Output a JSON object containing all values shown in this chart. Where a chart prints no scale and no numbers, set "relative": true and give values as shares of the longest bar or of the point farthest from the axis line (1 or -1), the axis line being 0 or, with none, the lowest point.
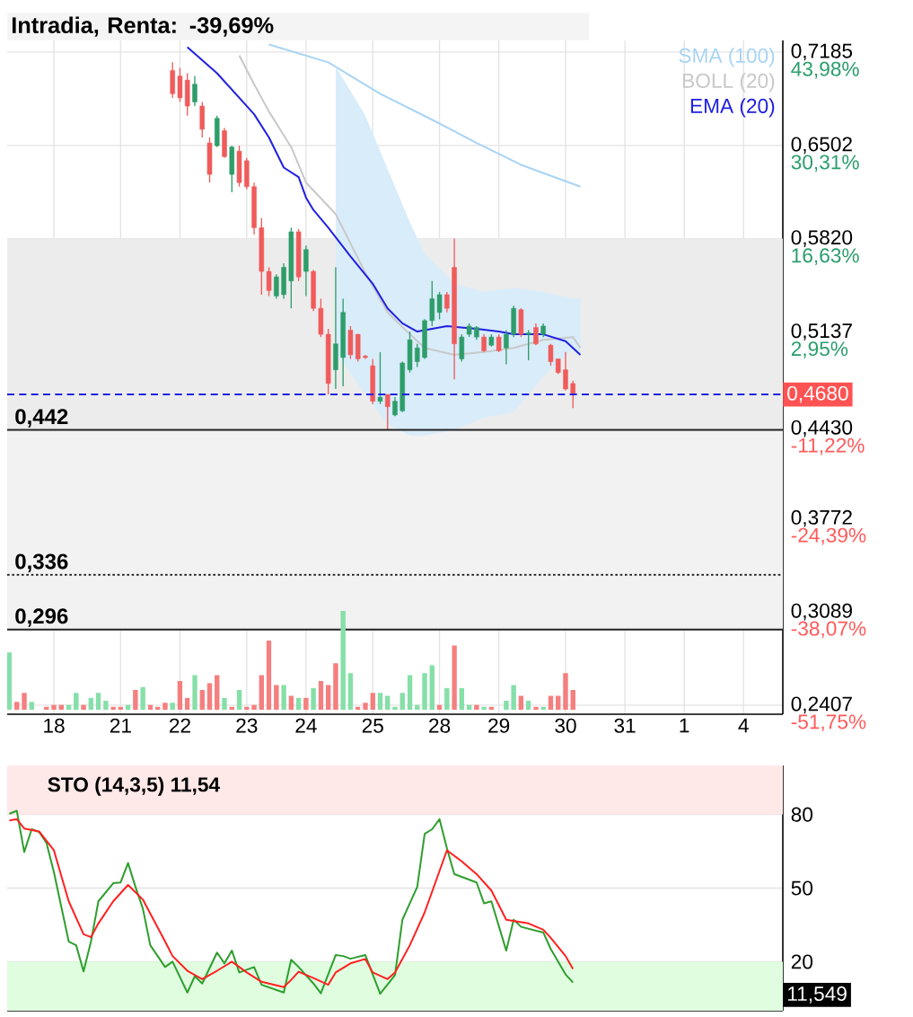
{
  "chart_data": [
    {
      "type": "candlestick",
      "title": "Intradia, Renta: -39,69%",
      "categories": [
        null,
        null,
        null,
        null,
        null,
        null,
        "18",
        null,
        null,
        null,
        null,
        null,
        null,
        null,
        null,
        "21",
        null,
        null,
        null,
        null,
        null,
        null,
        null,
        "22",
        null,
        null,
        null,
        null,
        null,
        null,
        null,
        null,
        "23",
        null,
        null,
        null,
        null,
        null,
        null,
        null,
        "24",
        null,
        null,
        null,
        null,
        null,
        null,
        null,
        null,
        "25",
        null,
        null,
        null,
        null,
        null,
        null,
        null,
        null,
        "28",
        null,
        null,
        null,
        null,
        null,
        null,
        null,
        "29",
        null,
        null,
        null,
        null,
        null,
        null,
        null,
        null,
        "30",
        null,
        null,
        null,
        null,
        null,
        null,
        null,
        "31",
        null,
        null,
        null,
        null,
        null,
        null,
        null,
        "1",
        null,
        null,
        null,
        null,
        null,
        null,
        null,
        "4",
        null,
        null,
        null,
        null,
        null
      ],
      "series": [
        {
          "name": "SMA (100)",
          "type": "line",
          "color": "#a8d4f5",
          "values": [
            null,
            null,
            null,
            null,
            null,
            null,
            null,
            null,
            null,
            null,
            null,
            null,
            null,
            null,
            null,
            null,
            null,
            null,
            null,
            null,
            null,
            null,
            null,
            null,
            null,
            null,
            null,
            null,
            null,
            null,
            null,
            null,
            null,
            null,
            null,
            0.724,
            null,
            null,
            null,
            null,
            null,
            null,
            null,
            0.711,
            null,
            null,
            null,
            null,
            null,
            null,
            0.688,
            null,
            null,
            null,
            null,
            null,
            null,
            0.669,
            null,
            null,
            null,
            null,
            null,
            0.652,
            null,
            null,
            null,
            null,
            null,
            0.636,
            null,
            null,
            null,
            null,
            0.626,
            null,
            null,
            0.62,
            null,
            null,
            null,
            null,
            null,
            null,
            null,
            null,
            null,
            null,
            null,
            null,
            null,
            null,
            null,
            null,
            null,
            null,
            null,
            null,
            null,
            null,
            null,
            null,
            null,
            null,
            null
          ]
        },
        {
          "name": "BOLL (20)",
          "type": "line",
          "color": "#c8c8c8",
          "values": [
            null,
            null,
            null,
            null,
            null,
            null,
            null,
            null,
            null,
            null,
            null,
            null,
            null,
            null,
            null,
            null,
            null,
            null,
            null,
            null,
            null,
            null,
            null,
            null,
            null,
            null,
            null,
            null,
            null,
            null,
            null,
            0.716,
            null,
            0.695,
            null,
            0.675,
            null,
            null,
            0.649,
            null,
            0.623,
            null,
            null,
            null,
            0.6,
            null,
            null,
            null,
            0.557,
            null,
            null,
            0.528,
            null,
            null,
            0.512,
            null,
            0.502,
            null,
            null,
            null,
            0.497,
            null,
            null,
            null,
            0.499,
            null,
            null,
            null,
            0.502,
            null,
            null,
            null,
            0.508,
            null,
            null,
            null,
            0.51,
            0.502,
            null,
            null,
            null,
            null,
            null,
            null,
            null,
            null,
            null,
            null,
            null,
            null,
            null,
            null,
            null,
            null,
            null,
            null,
            null,
            null,
            null,
            null,
            null,
            null,
            null,
            null,
            null
          ],
          "lower": [
            null,
            null,
            null,
            null,
            null,
            null,
            null,
            null,
            null,
            null,
            null,
            null,
            null,
            null,
            null,
            null,
            null,
            null,
            null,
            null,
            null,
            null,
            null,
            null,
            null,
            null,
            null,
            null,
            null,
            null,
            null,
            null,
            null,
            null,
            null,
            null,
            null,
            null,
            null,
            null,
            null,
            null,
            null,
            null,
            0.499,
            null,
            null,
            null,
            0.468,
            null,
            null,
            0.446,
            null,
            null,
            0.438,
            null,
            0.438,
            null,
            null,
            null,
            0.442,
            null,
            null,
            null,
            0.451,
            null,
            null,
            null,
            0.455,
            null,
            null,
            null,
            0.481,
            null,
            null,
            null,
            0.501,
            0.499,
            null,
            null,
            null,
            null,
            null,
            null,
            null,
            null,
            null,
            null,
            null,
            null,
            null,
            null,
            null,
            null,
            null,
            null,
            null,
            null,
            null,
            null,
            null,
            null,
            null,
            null,
            null
          ],
          "upper": [
            null,
            null,
            null,
            null,
            null,
            null,
            null,
            null,
            null,
            null,
            null,
            null,
            null,
            null,
            null,
            null,
            null,
            null,
            null,
            null,
            null,
            null,
            null,
            null,
            null,
            null,
            null,
            null,
            null,
            null,
            null,
            null,
            null,
            null,
            null,
            null,
            null,
            null,
            null,
            null,
            null,
            null,
            null,
            null,
            0.708,
            null,
            null,
            null,
            0.672,
            null,
            null,
            0.633,
            null,
            null,
            0.594,
            null,
            0.571,
            null,
            null,
            null,
            0.549,
            null,
            null,
            null,
            0.543,
            null,
            null,
            null,
            0.546,
            null,
            null,
            null,
            0.543,
            null,
            null,
            null,
            0.538,
            0.538,
            null,
            null,
            null,
            null,
            null,
            null,
            null,
            null,
            null,
            null,
            null,
            null,
            null,
            null,
            null,
            null,
            null,
            null,
            null,
            null,
            null,
            null,
            null,
            null,
            null,
            null,
            null
          ]
        },
        {
          "name": "EMA (20)",
          "type": "line",
          "color": "#2020e0",
          "values": [
            null,
            null,
            null,
            null,
            null,
            null,
            null,
            null,
            null,
            null,
            null,
            null,
            null,
            null,
            null,
            null,
            null,
            null,
            null,
            null,
            null,
            null,
            null,
            null,
            0.722,
            null,
            null,
            null,
            0.703,
            null,
            null,
            null,
            null,
            0.673,
            null,
            0.656,
            null,
            0.634,
            null,
            0.627,
            0.612,
            0.603,
            null,
            0.59,
            null,
            null,
            0.569,
            null,
            null,
            0.549,
            null,
            0.531,
            null,
            0.52,
            null,
            0.514,
            null,
            0.516,
            null,
            0.518,
            null,
            0.517,
            null,
            0.516,
            null,
            null,
            0.514,
            null,
            0.512,
            null,
            0.512,
            null,
            0.512,
            null,
            null,
            0.507,
            null,
            0.497,
            null,
            null,
            null,
            null,
            null,
            null,
            null,
            null,
            null,
            null,
            null,
            null,
            null,
            null,
            null,
            null,
            null,
            null,
            null,
            null,
            null,
            null,
            null,
            null,
            null,
            null,
            null
          ]
        },
        {
          "type": "candlestick",
          "ohlc": [
            null,
            null,
            null,
            null,
            null,
            null,
            null,
            null,
            null,
            null,
            null,
            null,
            null,
            null,
            null,
            null,
            null,
            null,
            null,
            null,
            null,
            null,
            [
              0.705,
              0.711,
              0.685,
              0.688
            ],
            [
              0.701,
              0.707,
              0.682,
              0.685
            ],
            [
              0.698,
              0.703,
              0.672,
              0.679
            ],
            [
              0.682,
              0.701,
              0.679,
              0.695
            ],
            [
              0.679,
              0.682,
              0.656,
              0.662
            ],
            [
              0.652,
              0.656,
              0.623,
              0.629
            ],
            [
              0.65,
              0.672,
              0.649,
              0.67
            ],
            [
              0.661,
              0.663,
              0.641,
              0.642
            ],
            [
              0.629,
              0.65,
              0.616,
              0.649
            ],
            [
              0.646,
              0.65,
              0.62,
              0.623
            ],
            [
              0.639,
              0.641,
              0.618,
              0.62
            ],
            [
              0.62,
              0.623,
              0.585,
              0.59
            ],
            [
              0.59,
              0.597,
              0.541,
              0.558
            ],
            [
              0.558,
              0.561,
              0.54,
              0.544
            ],
            [
              0.54,
              0.556,
              0.538,
              0.554
            ],
            [
              0.541,
              0.564,
              0.538,
              0.561
            ],
            [
              0.551,
              0.59,
              0.531,
              0.587
            ],
            [
              0.587,
              0.589,
              0.551,
              0.554
            ],
            [
              0.558,
              0.577,
              0.54,
              0.574
            ],
            [
              0.558,
              0.559,
              0.529,
              0.531
            ],
            [
              0.531,
              0.538,
              0.51,
              0.512
            ],
            [
              0.512,
              0.516,
              0.468,
              0.476
            ],
            [
              0.486,
              0.561,
              0.472,
              0.505
            ],
            [
              0.495,
              0.538,
              0.474,
              0.528
            ],
            [
              0.515,
              0.518,
              0.494,
              0.497
            ],
            [
              0.512,
              0.512,
              0.492,
              0.494
            ],
            [
              0.496,
              0.497,
              0.494,
              0.495
            ],
            [
              0.489,
              0.494,
              0.461,
              0.463
            ],
            [
              0.463,
              0.499,
              0.461,
              0.466
            ],
            [
              0.468,
              0.468,
              0.442,
              0.459
            ],
            [
              0.453,
              0.466,
              0.452,
              0.463
            ],
            [
              0.456,
              0.492,
              0.455,
              0.491
            ],
            [
              0.486,
              0.514,
              0.484,
              0.508
            ],
            [
              0.492,
              0.505,
              0.488,
              0.502
            ],
            [
              0.495,
              0.523,
              0.494,
              0.522
            ],
            [
              0.522,
              0.551,
              0.518,
              0.538
            ],
            [
              0.528,
              0.543,
              0.523,
              0.541
            ],
            [
              0.541,
              0.543,
              0.528,
              0.531
            ],
            [
              0.561,
              0.582,
              0.479,
              0.505
            ],
            [
              0.494,
              0.512,
              0.492,
              0.51
            ],
            [
              0.512,
              0.52,
              0.51,
              0.518
            ],
            [
              0.51,
              0.518,
              0.508,
              0.517
            ],
            [
              0.51,
              0.512,
              0.499,
              0.5
            ],
            [
              0.504,
              0.512,
              0.503,
              0.51
            ],
            [
              0.51,
              0.512,
              0.499,
              0.5
            ],
            [
              0.502,
              0.515,
              0.49,
              0.512
            ],
            [
              0.512,
              0.533,
              0.51,
              0.531
            ],
            [
              0.53,
              0.531,
              0.51,
              0.512
            ],
            [
              0.512,
              0.515,
              0.493,
              0.513
            ],
            [
              0.517,
              0.52,
              0.504,
              0.505
            ],
            [
              0.512,
              0.52,
              0.51,
              0.518
            ],
            [
              0.504,
              0.505,
              0.489,
              0.492
            ],
            [
              0.494,
              0.494,
              0.483,
              0.484
            ],
            [
              0.486,
              0.499,
              0.471,
              0.472
            ],
            [
              0.476,
              0.478,
              0.458,
              0.468
            ],
            null,
            null,
            null,
            null,
            null,
            null,
            null,
            null,
            null,
            null,
            null,
            null,
            null,
            null,
            null,
            null,
            null,
            null,
            null,
            null,
            null,
            null,
            null,
            null,
            null,
            null,
            null,
            null
          ]
        }
      ],
      "ylim": [
        0.234,
        0.727
      ],
      "yticks": [
        {
          "value": 0.7185,
          "label": "0,7185"
        },
        {
          "value": 0.6502,
          "label": "0,6502"
        },
        {
          "value": 0.582,
          "label": "0,5820"
        },
        {
          "value": 0.5137,
          "label": "0,5137"
        },
        {
          "value": 0.443,
          "label": "0,4430"
        },
        {
          "value": 0.3772,
          "label": "0,3772"
        },
        {
          "value": 0.3089,
          "label": "0,3089"
        },
        {
          "value": 0.2407,
          "label": "0,2407"
        }
      ],
      "y2lim": [
        -53.1,
        45.7
      ],
      "y2ticks": [
        {
          "value": 43.98,
          "label": "43,98%"
        },
        {
          "value": 30.31,
          "label": "30,31%"
        },
        {
          "value": 16.63,
          "label": "16,63%"
        },
        {
          "value": 2.95,
          "label": "2,95%"
        },
        {
          "value": -11.22,
          "label": "-11,22%"
        },
        {
          "value": -24.39,
          "label": "-24,39%"
        },
        {
          "value": -38.07,
          "label": "-38,07%"
        },
        {
          "value": -51.75,
          "label": "-51,75%"
        }
      ],
      "bands": [
        {
          "axis": "y",
          "from": 0.442,
          "to": 0.582,
          "color": "#ececec"
        },
        {
          "axis": "y",
          "from": 0.296,
          "to": 0.442,
          "color": "#f2f2f2"
        }
      ],
      "ref_lines": [
        {
          "axis": "y",
          "value": 0.442,
          "label": "0,442",
          "color": "#222222",
          "line_style": "solid"
        },
        {
          "axis": "y",
          "value": 0.336,
          "label": "0,336",
          "color": "#222222",
          "line_style": "dotted"
        },
        {
          "axis": "y",
          "value": 0.296,
          "label": "0,296",
          "color": "#222222",
          "line_style": "solid"
        },
        {
          "axis": "y",
          "value": 0.468,
          "label": "0,4680",
          "color": "#2020e0",
          "line_style": "dashed"
        }
      ],
      "grid": true,
      "legend": "top right"
    },
    {
      "type": "bar",
      "relative": true,
      "categories": [
        null,
        null,
        null,
        null,
        null,
        null,
        null,
        null,
        null,
        null,
        null,
        null,
        null,
        null,
        null,
        null,
        null,
        null,
        null,
        null,
        null,
        null,
        null,
        null,
        null,
        null,
        null,
        null,
        null,
        null,
        null,
        null,
        null,
        null,
        null,
        null,
        null,
        null,
        null,
        null,
        null,
        null,
        null,
        null,
        null,
        null,
        null,
        null,
        null,
        null,
        null,
        null,
        null,
        null,
        null,
        null,
        null,
        null,
        null,
        null,
        null,
        null,
        null,
        null,
        null,
        null,
        null,
        null,
        null,
        null,
        null,
        null,
        null,
        null,
        null,
        null,
        null,
        null,
        null,
        null,
        null,
        null,
        null,
        null,
        null,
        null,
        null,
        null,
        null,
        null,
        null,
        null,
        null,
        null,
        null,
        null,
        null,
        null,
        null,
        null,
        null,
        null,
        null,
        null,
        null
      ],
      "values": [
        0.58,
        0.08,
        0.17,
        0.08,
        null,
        0.03,
        0.05,
        0.05,
        0.05,
        0.17,
        0.05,
        0.12,
        0.17,
        0.09,
        0.03,
        0.03,
        0.05,
        0.2,
        0.23,
        0.05,
        0.03,
        0.07,
        0.07,
        0.29,
        0.12,
        0.35,
        0.2,
        0.27,
        0.35,
        0.12,
        0.03,
        0.2,
        0.03,
        0.05,
        0.35,
        0.7,
        0.25,
        0.25,
        0.14,
        0.12,
        0.12,
        0.22,
        0.29,
        0.25,
        0.47,
        1,
        0.37,
        0.03,
        0.07,
        0.17,
        0.17,
        0.14,
        0.03,
        0.17,
        0.35,
        0.05,
        0.37,
        0.45,
        0.05,
        0.22,
        0.65,
        0.22,
        0.05,
        0.05,
        0.03,
        0.03,
        null,
        0.09,
        0.25,
        0.14,
        0.09,
        0.03,
        0.03,
        0.14,
        0.14,
        0.37,
        0.2,
        null,
        null,
        null,
        null,
        null,
        null,
        null,
        null,
        null,
        null,
        null,
        null,
        null,
        null,
        null,
        null,
        null,
        null,
        null,
        null,
        null,
        null,
        null,
        null,
        null,
        null,
        null,
        null
      ],
      "colors": [
        "#86dfa9",
        "#f57f7f",
        "#f57f7f",
        "#86dfa9",
        null,
        "#f57f7f",
        "#f57f7f",
        "#f57f7f",
        "#86dfa9",
        "#86dfa9",
        "#f57f7f",
        "#86dfa9",
        "#86dfa9",
        "#86dfa9",
        "#f57f7f",
        "#f57f7f",
        "#86dfa9",
        "#f57f7f",
        "#86dfa9",
        "#f57f7f",
        "#f57f7f",
        "#f57f7f",
        "#86dfa9",
        "#f57f7f",
        "#f57f7f",
        "#86dfa9",
        "#f57f7f",
        "#f57f7f",
        "#f57f7f",
        "#86dfa9",
        "#f57f7f",
        "#86dfa9",
        "#f57f7f",
        "#f57f7f",
        "#f57f7f",
        "#f57f7f",
        "#f57f7f",
        "#86dfa9",
        "#f57f7f",
        "#86dfa9",
        "#f57f7f",
        "#86dfa9",
        "#f57f7f",
        "#f57f7f",
        "#f57f7f",
        "#86dfa9",
        "#86dfa9",
        "#f57f7f",
        "#f57f7f",
        "#f57f7f",
        "#86dfa9",
        "#86dfa9",
        "#86dfa9",
        "#86dfa9",
        "#86dfa9",
        "#86dfa9",
        "#86dfa9",
        "#86dfa9",
        "#f57f7f",
        "#86dfa9",
        "#f57f7f",
        "#86dfa9",
        "#86dfa9",
        "#f57f7f",
        "#86dfa9",
        "#f57f7f",
        null,
        "#86dfa9",
        "#86dfa9",
        "#f57f7f",
        "#86dfa9",
        "#f57f7f",
        "#86dfa9",
        "#f57f7f",
        "#f57f7f",
        "#f57f7f",
        "#f57f7f",
        null,
        null,
        null,
        null,
        null,
        null,
        null,
        null,
        null,
        null,
        null,
        null,
        null,
        null,
        null,
        null,
        null,
        null,
        null,
        null,
        null,
        null,
        null,
        null,
        null,
        null,
        null,
        null
      ]
    },
    {
      "type": "line",
      "title": "STO (14,3,5)   11,54",
      "categories": [
        null,
        null,
        null,
        null,
        null,
        null,
        null,
        null,
        null,
        null,
        null,
        null,
        null,
        null,
        null,
        null,
        null,
        null,
        null,
        null,
        null,
        null,
        null,
        null,
        null,
        null,
        null,
        null,
        null,
        null,
        null,
        null,
        null,
        null,
        null,
        null,
        null,
        null,
        null,
        null,
        null,
        null,
        null,
        null,
        null,
        null,
        null,
        null,
        null,
        null,
        null,
        null,
        null,
        null,
        null,
        null,
        null,
        null,
        null,
        null,
        null,
        null,
        null,
        null,
        null,
        null,
        null,
        null,
        null,
        null,
        null,
        null,
        null,
        null,
        null,
        null,
        null,
        null,
        null,
        null,
        null,
        null,
        null,
        null,
        null,
        null,
        null,
        null,
        null,
        null,
        null,
        null,
        null,
        null,
        null,
        null,
        null,
        null,
        null,
        null,
        null,
        null,
        null,
        null,
        null
      ],
      "series": [
        {
          "color": "#2e9e2e",
          "values": [
            80.3,
            81.5,
            64.7,
            74.0,
            72.9,
            68.4,
            56.5,
            null,
            28.2,
            26.7,
            16.0,
            28.2,
            44.6,
            null,
            52.0,
            52.3,
            60.2,
            50.5,
            41.6,
            26.7,
            null,
            17.8,
            20.0,
            null,
            7.4,
            14.1,
            11.1,
            null,
            23.7,
            19.3,
            24.5,
            15.6,
            null,
            17.8,
            10.6,
            null,
            null,
            7.4,
            20.8,
            17.8,
            null,
            11.1,
            7.1,
            null,
            22.7,
            22.3,
            21.2,
            null,
            22.7,
            null,
            6.9,
            null,
            14.5,
            37.1,
            null,
            50.5,
            72.1,
            74.0,
            78.1,
            66.2,
            55.7,
            null,
            null,
            52.3,
            43.8,
            44.6,
            null,
            24.5,
            37.1,
            34.2,
            null,
            null,
            31.9,
            25.2,
            null,
            14.8,
            11.5,
            null,
            null,
            null,
            null,
            null,
            null,
            null,
            null,
            null,
            null,
            null,
            null,
            null,
            null,
            null,
            null,
            null,
            null,
            null,
            null,
            null,
            null,
            null,
            null,
            null,
            null,
            null,
            null
          ]
        },
        {
          "color": "#ff2020",
          "values": [
            77.6,
            78.1,
            74.3,
            null,
            73.1,
            null,
            65.4,
            null,
            44.6,
            null,
            31.2,
            30.0,
            35.6,
            null,
            44.6,
            null,
            51.3,
            null,
            45.3,
            null,
            null,
            28.2,
            22.3,
            null,
            16.3,
            null,
            12.9,
            null,
            16.3,
            null,
            20.0,
            null,
            15.6,
            null,
            11.8,
            null,
            null,
            9.6,
            12.6,
            15.9,
            null,
            13.3,
            null,
            10.6,
            15.6,
            null,
            19.3,
            null,
            21.1,
            15.6,
            null,
            12.9,
            15.6,
            null,
            26.7,
            null,
            40.1,
            null,
            null,
            65.4,
            null,
            60.9,
            null,
            55.7,
            null,
            49.0,
            null,
            37.1,
            null,
            null,
            35.6,
            null,
            33.0,
            29.7,
            null,
            22.3,
            17.0,
            null,
            null,
            null,
            null,
            null,
            null,
            null,
            null,
            null,
            null,
            null,
            null,
            null,
            null,
            null,
            null,
            null,
            null,
            null,
            null,
            null,
            null,
            null,
            null,
            null,
            null,
            null,
            null
          ]
        }
      ],
      "ylim": [
        0,
        100
      ],
      "yticks": [
        20,
        50,
        80
      ],
      "bands": [
        {
          "axis": "y",
          "from": 80,
          "to": 100,
          "color": "#ffe8e8"
        },
        {
          "axis": "y",
          "from": 0,
          "to": 20,
          "color": "#e0fde0"
        }
      ],
      "annotations": [
        "11,549"
      ],
      "grid": "y"
    }
  ]
}
